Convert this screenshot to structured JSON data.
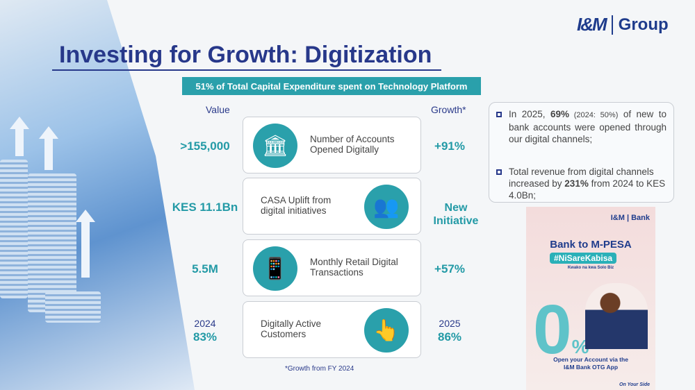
{
  "logo": {
    "brand": "I&M",
    "group": "Group"
  },
  "title": "Investing for Growth: Digitization",
  "banner": "51% of Total Capital Expenditure spent on Technology Platform",
  "headers": {
    "value": "Value",
    "growth": "Growth*"
  },
  "rows": [
    {
      "value": "&gt;155,000",
      "label_line1": "Number of Accounts",
      "label_line2": "Opened Digitally",
      "growth": "+91%",
      "icon": "bank-card-icon"
    },
    {
      "value": "KES 11.1Bn",
      "label_line1": "CASA Uplift from",
      "label_line2": "digital  initiatives",
      "growth_line1": "New",
      "growth_line2": "Initiative",
      "icon": "users-group-icon"
    },
    {
      "value": "5.5M",
      "label_line1": "Monthly Retail Digital",
      "label_line2": "Transactions",
      "growth": "+57%",
      "icon": "mobile-payment-icon"
    },
    {
      "value_year": "2024",
      "value": "83%",
      "label_line1": "Digitally Active",
      "label_line2": "Customers",
      "growth_year": "2025",
      "growth": "86%",
      "icon": "touch-phone-icon"
    }
  ],
  "footnote": "*Growth from FY 2024",
  "bullets": [
    {
      "pre": "In 2025, ",
      "bold": "69%",
      "paren": " (2024: 50%)",
      "post": " of new to bank accounts were opened through our digital channels;"
    },
    {
      "pre": "Total revenue from digital channels increased by ",
      "bold": "231%",
      "post": " from 2024 to KES 4.0Bn;"
    }
  ],
  "ad": {
    "brand": "I&M | Bank",
    "headline": "Bank to M-PESA",
    "hashtag": "#NiSareKabisa",
    "sub": "Kwako na kwa Solo Biz",
    "zero": "0",
    "percent": "%",
    "cta_line1": "Open your Account via the",
    "cta_line2": "I&M Bank OTG App",
    "slogan": "On Your Side"
  },
  "colors": {
    "navy": "#27388a",
    "teal": "#2aa0ab"
  }
}
